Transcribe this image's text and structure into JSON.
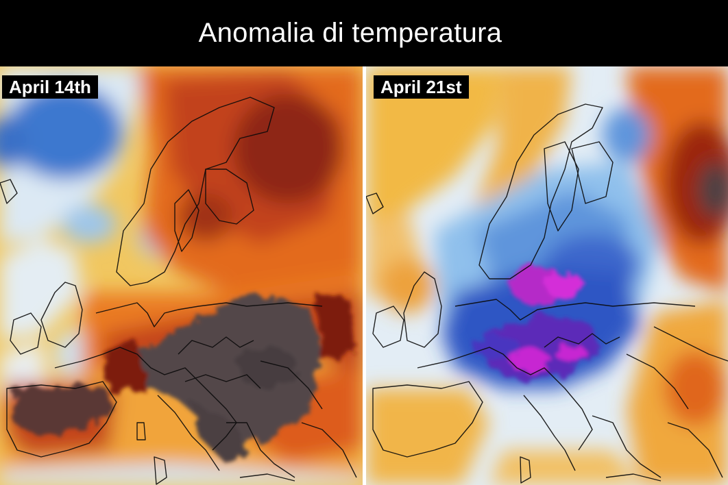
{
  "title": "Anomalia di temperatura",
  "panels": [
    {
      "date": "April 14th"
    },
    {
      "date": "April 21st"
    }
  ],
  "colors": {
    "background": "#000000",
    "title_text": "#ffffff",
    "label_bg": "#000000",
    "label_text": "#ffffff",
    "strong_cold": "#c71ccf",
    "cold": "#2f57c4",
    "cool": "#8fc0ec",
    "neutral": "#e8eef4",
    "warm": "#f3b238",
    "hot": "#e0661b",
    "very_hot": "#9c2710",
    "extreme_hot": "#4a4244"
  }
}
